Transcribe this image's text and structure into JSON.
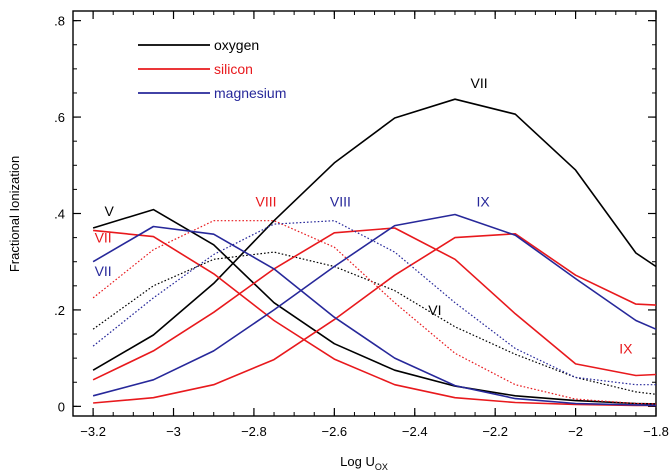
{
  "chart_data": {
    "type": "line",
    "xlabel": "Log U",
    "xlabel_sub": "OX",
    "ylabel": "Fractional Ionization",
    "xlim": [
      -3.25,
      -1.8
    ],
    "ylim": [
      -0.02,
      0.82
    ],
    "x_ticks": [
      -3.2,
      -3.0,
      -2.8,
      -2.6,
      -2.4,
      -2.2,
      -2.0,
      -1.8
    ],
    "x_tick_labels": [
      "−3.2",
      "−3",
      "−2.8",
      "−2.6",
      "−2.4",
      "−2.2",
      "−2",
      "−1.8"
    ],
    "y_ticks": [
      0,
      0.2,
      0.4,
      0.6,
      0.8
    ],
    "y_tick_labels": [
      "0",
      ".2",
      ".4",
      ".6",
      ".8"
    ],
    "grid": false,
    "legend_position": "top-left",
    "legend": [
      {
        "name": "oxygen",
        "color": "#000000"
      },
      {
        "name": "silicon",
        "color": "#e8191d"
      },
      {
        "name": "magnesium",
        "color": "#27289a"
      }
    ],
    "series": [
      {
        "element": "oxygen",
        "ion": "V",
        "style": "solid",
        "color": "#000000",
        "x": [
          -3.2,
          -3.05,
          -2.9,
          -2.75,
          -2.6,
          -2.45,
          -2.3,
          -2.15,
          -2.0,
          -1.85,
          -1.8
        ],
        "y": [
          0.37,
          0.408,
          0.335,
          0.215,
          0.13,
          0.075,
          0.042,
          0.022,
          0.012,
          0.006,
          0.005
        ]
      },
      {
        "element": "oxygen",
        "ion": "VI",
        "style": "dotted",
        "color": "#000000",
        "x": [
          -3.2,
          -3.05,
          -2.9,
          -2.75,
          -2.6,
          -2.45,
          -2.3,
          -2.15,
          -2.0,
          -1.85,
          -1.8
        ],
        "y": [
          0.16,
          0.25,
          0.305,
          0.32,
          0.29,
          0.24,
          0.165,
          0.108,
          0.06,
          0.03,
          0.025
        ]
      },
      {
        "element": "oxygen",
        "ion": "VII",
        "style": "solid",
        "color": "#000000",
        "x": [
          -3.2,
          -3.05,
          -2.9,
          -2.75,
          -2.6,
          -2.45,
          -2.3,
          -2.15,
          -2.0,
          -1.85,
          -1.8
        ],
        "y": [
          0.075,
          0.148,
          0.255,
          0.385,
          0.505,
          0.598,
          0.637,
          0.606,
          0.49,
          0.318,
          0.29
        ]
      },
      {
        "element": "silicon",
        "ion": "VII",
        "style": "solid",
        "color": "#e8191d",
        "x": [
          -3.2,
          -3.05,
          -2.9,
          -2.75,
          -2.6,
          -2.45,
          -2.3,
          -2.15,
          -2.0,
          -1.85,
          -1.8
        ],
        "y": [
          0.365,
          0.352,
          0.275,
          0.178,
          0.098,
          0.045,
          0.018,
          0.008,
          0.004,
          0.002,
          0.002
        ]
      },
      {
        "element": "silicon",
        "ion": "VIII",
        "style": "dotted",
        "color": "#e8191d",
        "x": [
          -3.2,
          -3.05,
          -2.9,
          -2.75,
          -2.6,
          -2.45,
          -2.3,
          -2.15,
          -2.0,
          -1.85,
          -1.8
        ],
        "y": [
          0.225,
          0.325,
          0.385,
          0.385,
          0.33,
          0.215,
          0.11,
          0.045,
          0.015,
          0.006,
          0.005
        ]
      },
      {
        "element": "silicon",
        "ion": "VIII",
        "style": "solid",
        "color": "#e8191d",
        "x": [
          -3.2,
          -3.05,
          -2.9,
          -2.75,
          -2.6,
          -2.45,
          -2.3,
          -2.15,
          -2.0,
          -1.85,
          -1.8
        ],
        "y": [
          0.055,
          0.115,
          0.195,
          0.285,
          0.36,
          0.37,
          0.305,
          0.192,
          0.088,
          0.064,
          0.066
        ]
      },
      {
        "element": "silicon",
        "ion": "IX",
        "style": "solid",
        "color": "#e8191d",
        "x": [
          -3.2,
          -3.05,
          -2.9,
          -2.75,
          -2.6,
          -2.45,
          -2.3,
          -2.15,
          -2.0,
          -1.85,
          -1.8
        ],
        "y": [
          0.007,
          0.018,
          0.045,
          0.097,
          0.18,
          0.272,
          0.35,
          0.358,
          0.272,
          0.212,
          0.21
        ]
      },
      {
        "element": "magnesium",
        "ion": "VII",
        "style": "solid",
        "color": "#27289a",
        "x": [
          -3.2,
          -3.05,
          -2.9,
          -2.75,
          -2.6,
          -2.45,
          -2.3,
          -2.15,
          -2.0,
          -1.85,
          -1.8
        ],
        "y": [
          0.3,
          0.373,
          0.357,
          0.285,
          0.185,
          0.1,
          0.043,
          0.016,
          0.006,
          0.003,
          0.002
        ]
      },
      {
        "element": "magnesium",
        "ion": "VIII",
        "style": "dotted",
        "color": "#27289a",
        "x": [
          -3.2,
          -3.05,
          -2.9,
          -2.75,
          -2.6,
          -2.45,
          -2.3,
          -2.15,
          -2.0,
          -1.85,
          -1.8
        ],
        "y": [
          0.125,
          0.225,
          0.315,
          0.378,
          0.385,
          0.32,
          0.215,
          0.12,
          0.06,
          0.045,
          0.045
        ]
      },
      {
        "element": "magnesium",
        "ion": "IX",
        "style": "solid",
        "color": "#27289a",
        "x": [
          -3.2,
          -3.05,
          -2.9,
          -2.75,
          -2.6,
          -2.45,
          -2.3,
          -2.15,
          -2.0,
          -1.85,
          -1.8
        ],
        "y": [
          0.022,
          0.055,
          0.115,
          0.2,
          0.29,
          0.375,
          0.398,
          0.355,
          0.265,
          0.178,
          0.16
        ]
      }
    ],
    "annotations": [
      {
        "text": "VII",
        "color": "#000000",
        "x": -2.24,
        "y": 0.66
      },
      {
        "text": "V",
        "color": "#000000",
        "x": -3.16,
        "y": 0.395
      },
      {
        "text": "VII",
        "color": "#e8191d",
        "x": -3.175,
        "y": 0.34
      },
      {
        "text": "VII",
        "color": "#27289a",
        "x": -3.175,
        "y": 0.27
      },
      {
        "text": "VIII",
        "color": "#e8191d",
        "x": -2.77,
        "y": 0.415
      },
      {
        "text": "VIII",
        "color": "#27289a",
        "x": -2.585,
        "y": 0.415
      },
      {
        "text": "IX",
        "color": "#27289a",
        "x": -2.23,
        "y": 0.415
      },
      {
        "text": "VI",
        "color": "#000000",
        "x": -2.35,
        "y": 0.19
      },
      {
        "text": "IX",
        "color": "#e8191d",
        "x": -1.875,
        "y": 0.11
      }
    ]
  }
}
